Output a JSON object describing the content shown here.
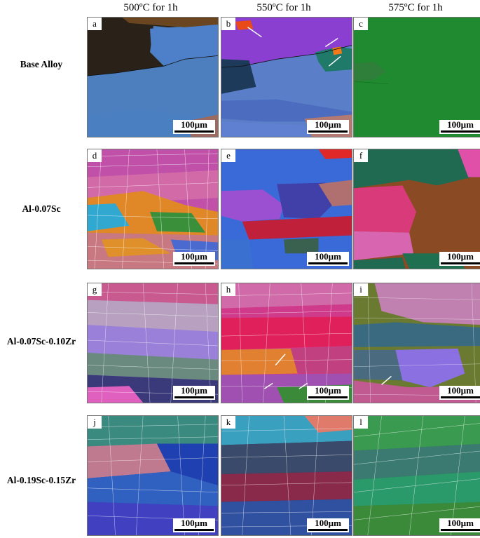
{
  "columns": [
    "500ºC for 1h",
    "550ºC for 1h",
    "575ºC for 1h"
  ],
  "rows": [
    "Base Alloy",
    "Al-0.07Sc",
    "Al-0.07Sc-0.10Zr",
    "Al-0.19Sc-0.15Zr"
  ],
  "panel_letters": [
    "a",
    "b",
    "c",
    "d",
    "e",
    "f",
    "g",
    "h",
    "i",
    "j",
    "k",
    "l"
  ],
  "scale_label": "100µm"
}
